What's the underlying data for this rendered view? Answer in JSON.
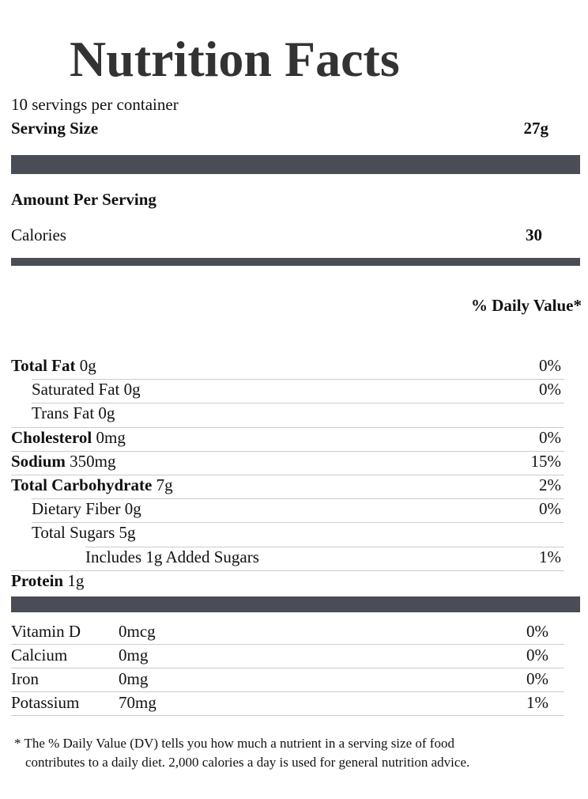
{
  "title": "Nutrition Facts",
  "servings": "10 servings per container",
  "serving_size_label": "Serving Size",
  "serving_size": "27g",
  "amount_per_serving": "Amount Per Serving",
  "calories_label": "Calories",
  "calories": "30",
  "dv_header": "% Daily Value*",
  "rows": [
    {
      "label": "Total Fat",
      "amount": "0g",
      "dv": "0%",
      "bold": true,
      "indent": 0
    },
    {
      "label": "Saturated Fat",
      "amount": "0g",
      "dv": "0%",
      "bold": false,
      "indent": 1
    },
    {
      "label": "Trans Fat",
      "amount": "0g",
      "dv": "",
      "bold": false,
      "indent": 1
    },
    {
      "label": "Cholesterol",
      "amount": "0mg",
      "dv": "0%",
      "bold": true,
      "indent": 0
    },
    {
      "label": "Sodium",
      "amount": "350mg",
      "dv": "15%",
      "bold": true,
      "indent": 0
    },
    {
      "label": "Total Carbohydrate",
      "amount": "7g",
      "dv": "2%",
      "bold": true,
      "indent": 0
    },
    {
      "label": "Dietary Fiber",
      "amount": "0g",
      "dv": "0%",
      "bold": false,
      "indent": 1
    },
    {
      "label": "Total Sugars",
      "amount": "5g",
      "dv": "",
      "bold": false,
      "indent": 1
    },
    {
      "label": "Includes 1g Added Sugars",
      "amount": "",
      "dv": "1%",
      "bold": false,
      "indent": 2
    },
    {
      "label": "Protein",
      "amount": "1g",
      "dv": "",
      "bold": true,
      "indent": 0
    }
  ],
  "vitamins": [
    {
      "label": "Vitamin D",
      "amount": "0mcg",
      "dv": "0%"
    },
    {
      "label": "Calcium",
      "amount": "0mg",
      "dv": "0%"
    },
    {
      "label": "Iron",
      "amount": "0mg",
      "dv": "0%"
    },
    {
      "label": "Potassium",
      "amount": "70mg",
      "dv": "1%"
    }
  ],
  "footnote_1": "* The % Daily Value (DV) tells you how much a nutrient in a serving size of food",
  "footnote_2": "contributes to a daily diet. 2,000 calories a day is used for general nutrition advice."
}
